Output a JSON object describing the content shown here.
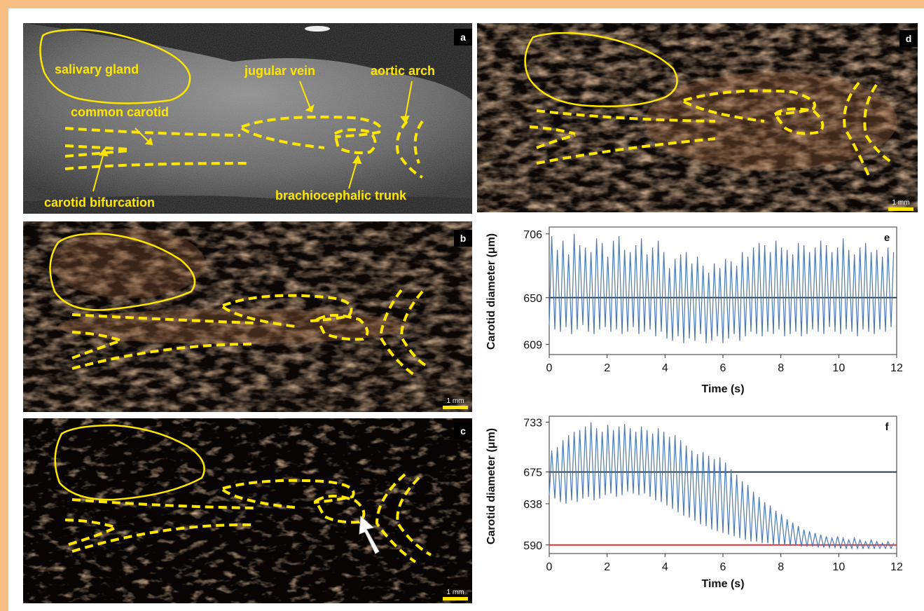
{
  "figure": {
    "panel_a": {
      "letter": "a",
      "labels": {
        "salivary_gland": "salivary gland",
        "jugular_vein": "jugular vein",
        "aortic_arch": "aortic arch",
        "common_carotid": "common carotid",
        "carotid_bifurcation": "carotid bifurcation",
        "brachiocephalic_trunk": "brachiocephalic trunk"
      }
    },
    "panel_b": {
      "letter": "b",
      "scale_label": "1 mm"
    },
    "panel_c": {
      "letter": "c",
      "scale_label": "1 mm"
    },
    "panel_d": {
      "letter": "d",
      "scale_label": "1 mm"
    },
    "colors": {
      "annotation": "#ffe600",
      "frame": "#f8be82",
      "trace": "#4a78b8",
      "baseline": "#2a3a4a",
      "red_line": "#e03030"
    }
  },
  "chart_data": [
    {
      "type": "line",
      "panel": "e",
      "xlabel": "Time (s)",
      "ylabel": "Carotid diameter (μm)",
      "xlim": [
        0,
        12
      ],
      "ylim": [
        600,
        712
      ],
      "xticks": [
        0,
        2,
        4,
        6,
        8,
        10,
        12
      ],
      "yticks": [
        609,
        650,
        706
      ],
      "reference_lines": [
        {
          "y": 650,
          "color": "#2a3a4a"
        }
      ],
      "series": [
        {
          "beats_per_second": 5.2,
          "peaks": [
            704,
            692,
            700,
            688,
            706,
            696,
            694,
            690,
            702,
            698,
            686,
            700,
            704,
            692,
            690,
            696,
            702,
            688,
            694,
            700,
            690,
            676,
            684,
            688,
            690,
            680,
            686,
            678,
            672,
            680,
            676,
            684,
            682,
            678,
            690,
            686,
            694,
            698,
            696,
            690,
            700,
            694,
            692,
            688,
            698,
            696,
            690,
            694,
            700,
            696,
            690,
            694,
            702,
            692,
            688,
            694,
            698,
            690,
            692,
            686,
            694,
            690
          ],
          "troughs": [
            626,
            622,
            620,
            624,
            618,
            622,
            626,
            620,
            618,
            622,
            624,
            620,
            622,
            618,
            620,
            624,
            618,
            620,
            622,
            616,
            620,
            614,
            612,
            616,
            610,
            614,
            612,
            618,
            610,
            612,
            616,
            610,
            614,
            618,
            612,
            616,
            620,
            618,
            616,
            620,
            618,
            622,
            616,
            618,
            620,
            616,
            618,
            622,
            620,
            618,
            624,
            620,
            618,
            622,
            620,
            616,
            622,
            620,
            618,
            622,
            620,
            624
          ]
        }
      ]
    },
    {
      "type": "line",
      "panel": "f",
      "xlabel": "Time (s)",
      "ylabel": "Carotid diameter (μm)",
      "xlim": [
        0,
        12
      ],
      "ylim": [
        580,
        740
      ],
      "xticks": [
        0,
        2,
        4,
        6,
        8,
        10,
        12
      ],
      "yticks": [
        590,
        638,
        675,
        733
      ],
      "reference_lines": [
        {
          "y": 675,
          "color": "#2a3a4a",
          "x_start": 0,
          "x_end": 12
        },
        {
          "y": 590,
          "color": "#e03030",
          "x_start": 0,
          "x_end": 12
        }
      ],
      "series": [
        {
          "beats_per_second": 5.2,
          "peaks": [
            700,
            704,
            712,
            718,
            722,
            724,
            728,
            733,
            726,
            722,
            730,
            724,
            728,
            731,
            726,
            722,
            728,
            724,
            720,
            726,
            722,
            716,
            718,
            712,
            706,
            700,
            696,
            698,
            694,
            690,
            692,
            686,
            678,
            672,
            664,
            660,
            652,
            646,
            640,
            636,
            630,
            626,
            620,
            616,
            612,
            608,
            606,
            604,
            602,
            600,
            598,
            600,
            598,
            596,
            598,
            596,
            594,
            596,
            594,
            592,
            594,
            592
          ],
          "troughs": [
            648,
            644,
            640,
            638,
            642,
            640,
            644,
            646,
            642,
            644,
            648,
            650,
            646,
            648,
            652,
            650,
            648,
            650,
            646,
            642,
            640,
            636,
            632,
            628,
            624,
            622,
            618,
            614,
            612,
            608,
            606,
            604,
            602,
            600,
            598,
            596,
            594,
            594,
            592,
            592,
            590,
            590,
            590,
            589,
            589,
            588,
            588,
            588,
            587,
            587,
            587,
            587,
            586,
            586,
            586,
            586,
            586,
            586,
            586,
            586,
            586,
            586
          ]
        }
      ]
    }
  ]
}
